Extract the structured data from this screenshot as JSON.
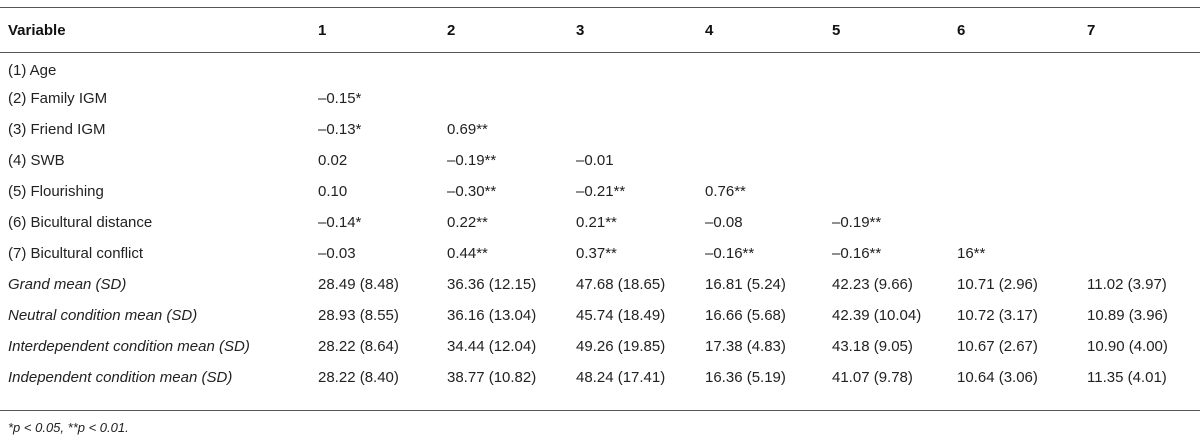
{
  "table": {
    "headers": [
      "Variable",
      "1",
      "2",
      "3",
      "4",
      "5",
      "6",
      "7"
    ],
    "rows": [
      {
        "label": "(1) Age",
        "cells": [
          "",
          "",
          "",
          "",
          "",
          "",
          ""
        ],
        "italic": false
      },
      {
        "label": "(2) Family IGM",
        "cells": [
          "–0.15*",
          "",
          "",
          "",
          "",
          "",
          ""
        ],
        "italic": false
      },
      {
        "label": "(3) Friend IGM",
        "cells": [
          "–0.13*",
          "0.69**",
          "",
          "",
          "",
          "",
          ""
        ],
        "italic": false
      },
      {
        "label": "(4) SWB",
        "cells": [
          "0.02",
          "–0.19**",
          "–0.01",
          "",
          "",
          "",
          ""
        ],
        "italic": false
      },
      {
        "label": "(5) Flourishing",
        "cells": [
          "0.10",
          "–0.30**",
          "–0.21**",
          "0.76**",
          "",
          "",
          ""
        ],
        "italic": false
      },
      {
        "label": "(6) Bicultural distance",
        "cells": [
          "–0.14*",
          "0.22**",
          "0.21**",
          "–0.08",
          "–0.19**",
          "",
          ""
        ],
        "italic": false
      },
      {
        "label": "(7) Bicultural conflict",
        "cells": [
          "–0.03",
          "0.44**",
          "0.37**",
          "–0.16**",
          "–0.16**",
          "16**",
          ""
        ],
        "italic": false
      },
      {
        "label": "Grand mean (SD)",
        "cells": [
          "28.49 (8.48)",
          "36.36 (12.15)",
          "47.68 (18.65)",
          "16.81 (5.24)",
          "42.23 (9.66)",
          "10.71 (2.96)",
          "11.02 (3.97)"
        ],
        "italic": true
      },
      {
        "label": "Neutral condition mean (SD)",
        "cells": [
          "28.93 (8.55)",
          "36.16 (13.04)",
          "45.74 (18.49)",
          "16.66 (5.68)",
          "42.39 (10.04)",
          "10.72 (3.17)",
          "10.89 (3.96)"
        ],
        "italic": true
      },
      {
        "label": "Interdependent condition mean (SD)",
        "cells": [
          "28.22 (8.64)",
          "34.44 (12.04)",
          "49.26 (19.85)",
          "17.38 (4.83)",
          "43.18 (9.05)",
          "10.67 (2.67)",
          "10.90 (4.00)"
        ],
        "italic": true
      },
      {
        "label": "Independent condition mean (SD)",
        "cells": [
          "28.22 (8.40)",
          "38.77 (10.82)",
          "48.24 (17.41)",
          "16.36 (5.19)",
          "41.07 (9.78)",
          "10.64 (3.06)",
          "11.35 (4.01)"
        ],
        "italic": true
      }
    ]
  },
  "footnote": "*p < 0.05, **p < 0.01."
}
